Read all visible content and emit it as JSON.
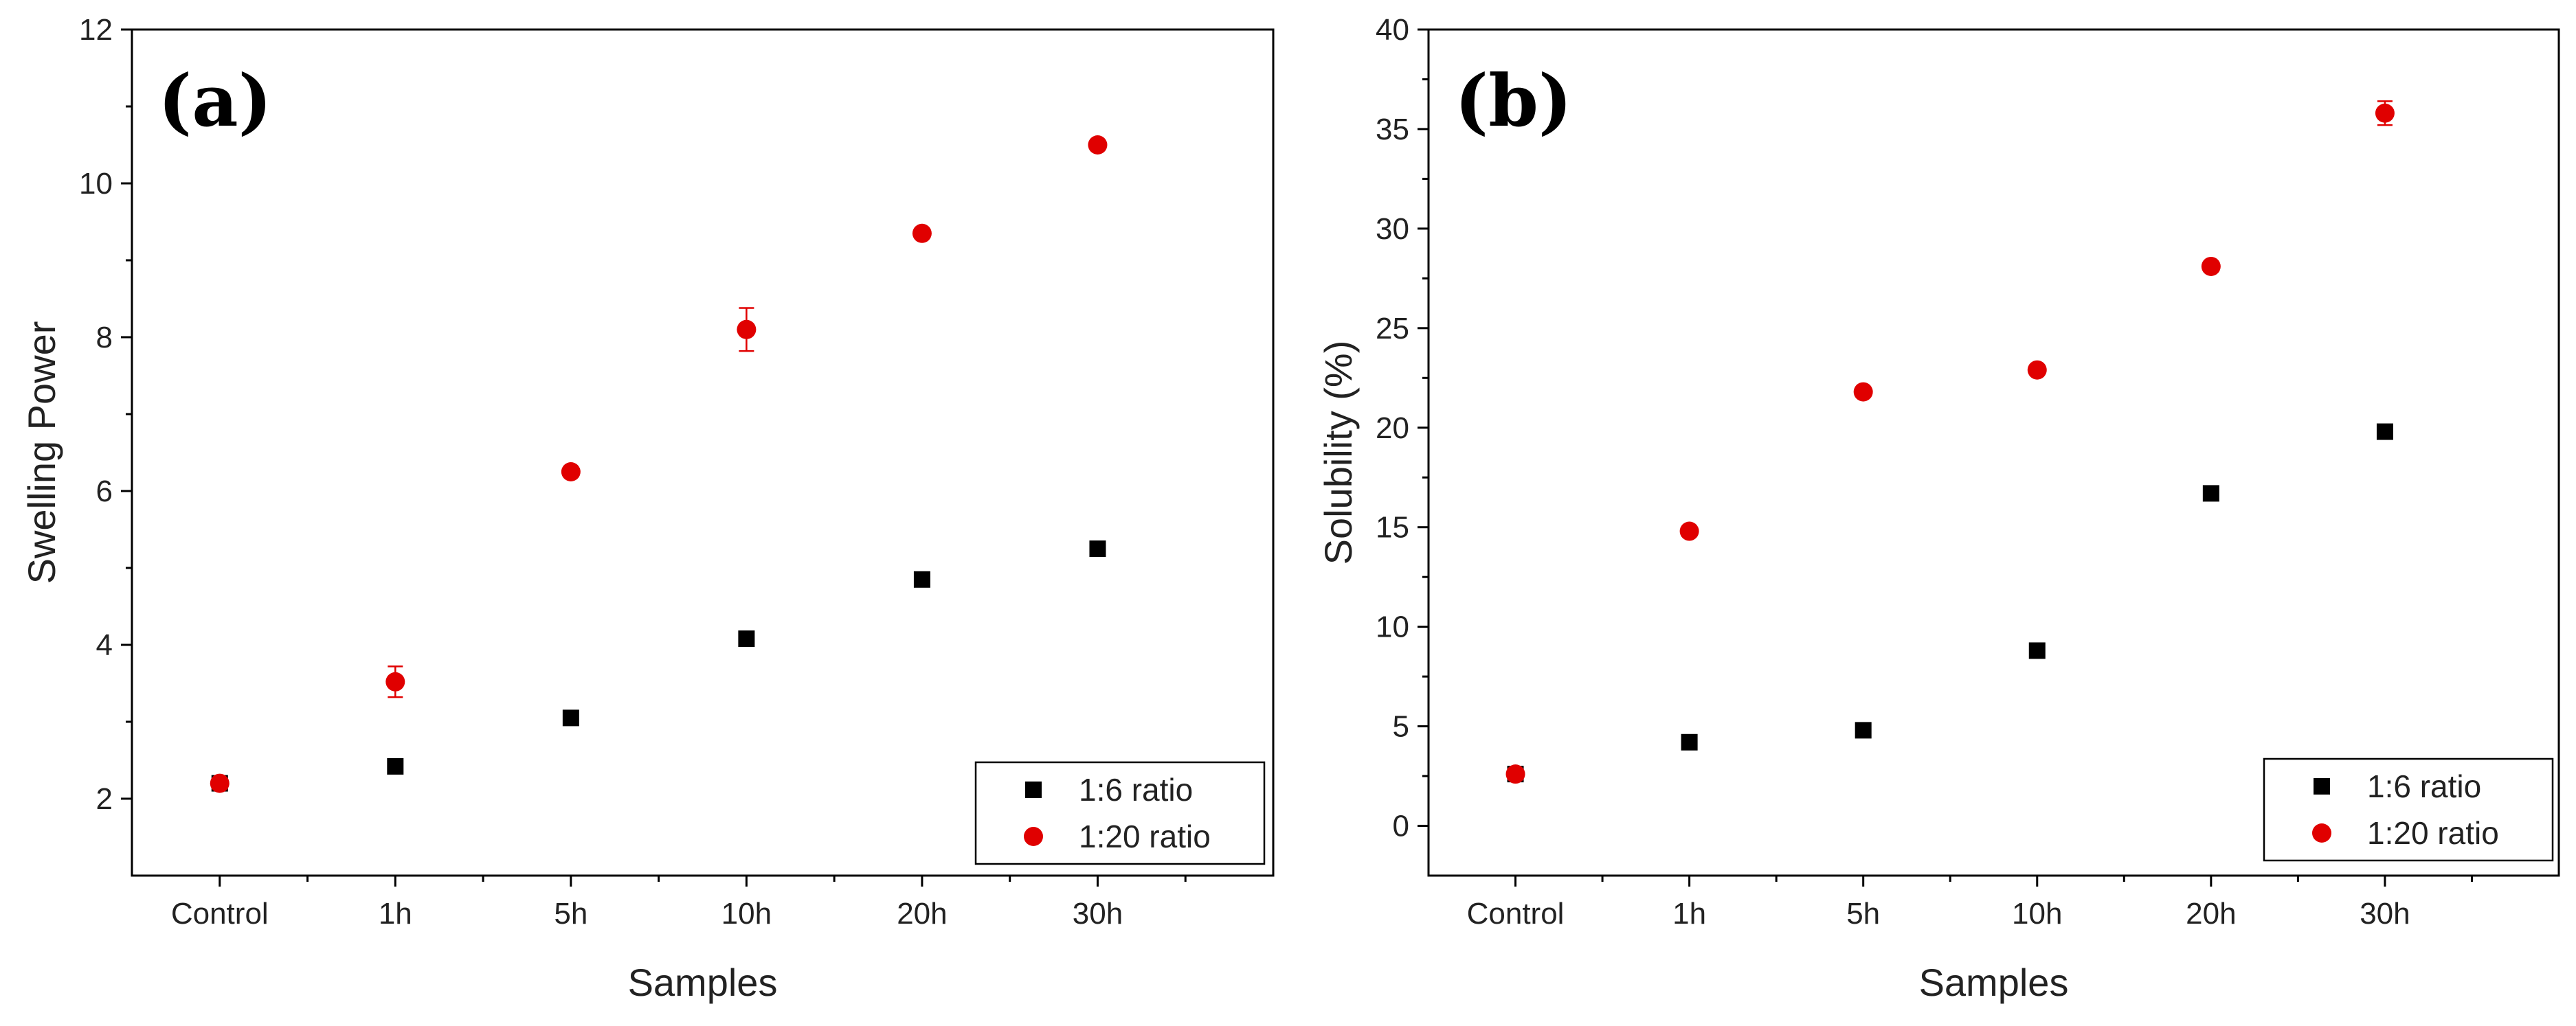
{
  "chart_data": [
    {
      "type": "scatter",
      "panel_label": "(a)",
      "categories": [
        "Control",
        "1h",
        "5h",
        "10h",
        "20h",
        "30h"
      ],
      "xlabel": "Samples",
      "ylabel": "Swelling Power",
      "ylim": [
        1,
        12
      ],
      "yticks": [
        2,
        4,
        6,
        8,
        10,
        12
      ],
      "grid": false,
      "legend_position": "bottom-right",
      "series": [
        {
          "name": "1:6 ratio",
          "marker": "square",
          "color": "#000000",
          "values": [
            2.2,
            2.42,
            3.05,
            4.08,
            4.85,
            5.25
          ],
          "errors": [
            0,
            0,
            0,
            0,
            0,
            0
          ]
        },
        {
          "name": "1:20 ratio",
          "marker": "circle",
          "color": "#e00000",
          "values": [
            2.2,
            3.52,
            6.25,
            8.1,
            9.35,
            10.5
          ],
          "errors": [
            0,
            0.2,
            0,
            0.28,
            0,
            0
          ]
        }
      ]
    },
    {
      "type": "scatter",
      "panel_label": "(b)",
      "categories": [
        "Control",
        "1h",
        "5h",
        "10h",
        "20h",
        "30h"
      ],
      "xlabel": "Samples",
      "ylabel": "Solubility (%)",
      "ylim": [
        -2.5,
        40
      ],
      "yticks": [
        0,
        5,
        10,
        15,
        20,
        25,
        30,
        35,
        40
      ],
      "grid": false,
      "legend_position": "bottom-right",
      "series": [
        {
          "name": "1:6 ratio",
          "marker": "square",
          "color": "#000000",
          "values": [
            2.6,
            4.2,
            4.8,
            8.8,
            16.7,
            19.8
          ],
          "errors": [
            0,
            0,
            0,
            0,
            0,
            0
          ]
        },
        {
          "name": "1:20 ratio",
          "marker": "circle",
          "color": "#e00000",
          "values": [
            2.6,
            14.8,
            21.8,
            22.9,
            28.1,
            35.8
          ],
          "errors": [
            0,
            0,
            0,
            0,
            0,
            0.6
          ]
        }
      ]
    }
  ]
}
